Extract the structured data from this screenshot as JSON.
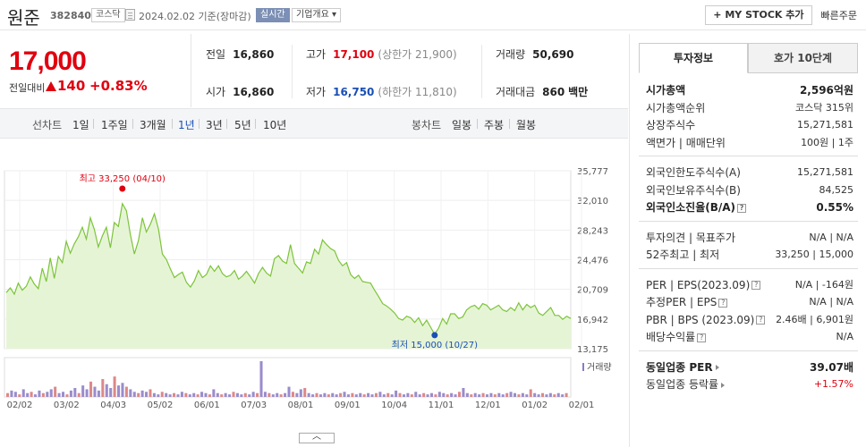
{
  "header": {
    "name": "원준",
    "code": "382840",
    "market": "코스닥",
    "date": "2024.02.02  기준(장마감)",
    "live": "실시간",
    "company_info": "기업개요 ▾",
    "mystock": "+ MY STOCK 추가",
    "quick_order": "빠른주문"
  },
  "quote": {
    "price": "17,000",
    "change_label": "전일대비",
    "change": "140",
    "change_pct": "+0.83%",
    "prev_label": "전일",
    "prev": "16,860",
    "high_label": "고가",
    "high": "17,100",
    "upper": "(상한가 21,900)",
    "volume_label": "거래량",
    "volume": "50,690",
    "open_label": "시가",
    "open": "16,860",
    "low_label": "저가",
    "low": "16,750",
    "lower": "(하한가 11,810)",
    "amount_label": "거래대금",
    "amount": "860",
    "amount_unit": "백만"
  },
  "tabs": {
    "line_label": "선차트",
    "line": [
      "1일",
      "1주일",
      "3개월",
      "1년",
      "3년",
      "5년",
      "10년"
    ],
    "candle_label": "봉차트",
    "candle": [
      "일봉",
      "주봉",
      "월봉"
    ]
  },
  "chart_data": {
    "type": "area",
    "yticks": [
      "35,777",
      "32,010",
      "28,243",
      "24,476",
      "20,709",
      "16,942",
      "13,175"
    ],
    "ylim": [
      13175,
      35777
    ],
    "xticks": [
      "02/02",
      "03/02",
      "04/03",
      "05/02",
      "06/01",
      "07/03",
      "08/01",
      "09/01",
      "10/04",
      "11/01",
      "12/01",
      "01/02",
      "02/01"
    ],
    "series": [
      {
        "values": [
          20300,
          20900,
          20100,
          21500,
          20600,
          21100,
          22300,
          21400,
          20800,
          23400,
          21700,
          24700,
          22100,
          24900,
          24100,
          26800,
          25300,
          26500,
          27400,
          28600,
          27100,
          29800,
          28300,
          26100,
          27500,
          28600,
          26000,
          29200,
          28700,
          31600,
          30700,
          27700,
          25200,
          26900,
          29800,
          28000,
          29000,
          30300,
          28400,
          25200,
          24500,
          23300,
          22200,
          22600,
          22900,
          21600,
          21000,
          21800,
          23100,
          22200,
          22600,
          23700,
          23000,
          23700,
          22700,
          22300,
          22500,
          23100,
          22000,
          22400,
          23000,
          22300,
          21500,
          22700,
          23500,
          22800,
          22400,
          24600,
          25000,
          24300,
          24000,
          26400,
          24000,
          23400,
          22800,
          24200,
          24000,
          25800,
          25200,
          27000,
          26400,
          25900,
          25600,
          24400,
          23700,
          24100,
          22600,
          22100,
          22500,
          21700,
          21600,
          21500,
          20600,
          19800,
          18900,
          18600,
          18200,
          17700,
          17000,
          16800,
          17300,
          17100,
          16500,
          17100,
          16100,
          16800,
          15900,
          15000,
          15800,
          17000,
          16300,
          17600,
          17600,
          17000,
          17200,
          18100,
          18500,
          18700,
          18200,
          18900,
          18700,
          18100,
          18400,
          18700,
          18100,
          17900,
          18400,
          18000,
          19000,
          18100,
          18800,
          18400,
          18700,
          17700,
          17400,
          17900,
          18400,
          17400,
          17400,
          16900,
          17300,
          17000
        ]
      }
    ],
    "high_annotation": "최고 33,250 (04/10)",
    "low_annotation": "최저 15,000 (10/27)",
    "volume_label": "거래량",
    "volume_values": [
      3,
      5,
      4,
      2,
      6,
      3,
      4,
      2,
      5,
      3,
      4,
      6,
      8,
      3,
      4,
      2,
      5,
      7,
      3,
      9,
      6,
      12,
      8,
      5,
      14,
      10,
      7,
      16,
      9,
      11,
      8,
      6,
      4,
      3,
      5,
      4,
      6,
      3,
      2,
      4,
      3,
      2,
      3,
      2,
      4,
      3,
      2,
      3,
      2,
      4,
      3,
      2,
      6,
      3,
      2,
      3,
      2,
      4,
      3,
      2,
      3,
      2,
      4,
      3,
      28,
      4,
      3,
      2,
      3,
      2,
      3,
      8,
      4,
      3,
      6,
      7,
      3,
      2,
      3,
      2,
      3,
      2,
      3,
      2,
      3,
      4,
      2,
      3,
      2,
      3,
      2,
      3,
      2,
      3,
      4,
      2,
      3,
      2,
      5,
      3,
      2,
      3,
      2,
      4,
      2,
      3,
      2,
      3,
      2,
      4,
      3,
      2,
      3,
      2,
      4,
      7,
      3,
      2,
      3,
      2,
      3,
      2,
      3,
      2,
      3,
      2,
      3,
      4,
      3,
      2,
      3,
      2,
      6,
      3,
      2,
      3,
      2,
      3,
      2,
      3,
      2,
      3
    ]
  },
  "side": {
    "tab_active": "투자정보",
    "tab_inactive": "호가 10단계",
    "rows1": [
      {
        "label": "시가총액",
        "value": "2,596억원"
      },
      {
        "label": "시가총액순위",
        "value": "코스닥 315위"
      },
      {
        "label": "상장주식수",
        "value": "15,271,581"
      },
      {
        "label": "액면가 | 매매단위",
        "value": "100원 | 1주"
      }
    ],
    "rows2": [
      {
        "label": "외국인한도주식수(A)",
        "value": "15,271,581"
      },
      {
        "label": "외국인보유주식수(B)",
        "value": "84,525"
      },
      {
        "label": "외국인소진율(B/A)",
        "value": "0.55%"
      }
    ],
    "rows3": [
      {
        "label": "투자의견 | 목표주가",
        "value": "N/A | N/A"
      },
      {
        "label": "52주최고 | 최저",
        "value": "33,250 | 15,000"
      }
    ],
    "rows4": [
      {
        "label": "PER | EPS(2023.09)",
        "value_a": "N/A",
        "value_b": "-164원"
      },
      {
        "label": "추정PER | EPS",
        "value_a": "N/A",
        "value_b": "N/A"
      },
      {
        "label": "PBR | BPS (2023.09)",
        "value_a": "2.46배",
        "value_b": "6,901원"
      },
      {
        "label": "배당수익률",
        "value_a": "",
        "value_b": "N/A"
      }
    ],
    "rows5": [
      {
        "label": "동일업종 PER",
        "value": "39.07배"
      },
      {
        "label": "동일업종 등락률",
        "value": "+1.57%"
      }
    ]
  },
  "colors": {
    "up": "#e0000f",
    "down": "#1a4fb5",
    "line": "#7cc43a",
    "fill": "#e6f4d6"
  }
}
